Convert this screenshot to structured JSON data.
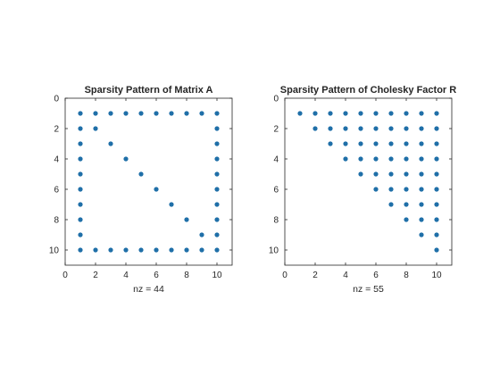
{
  "colors": {
    "marker": "#1f6fa8",
    "axis": "#262626",
    "background": "#ffffff"
  },
  "chart_data": [
    {
      "type": "scatter",
      "subtype": "spy",
      "title": "Sparsity Pattern of Matrix A",
      "xlabel": "nz = 44",
      "ylabel": "",
      "xlim": [
        0,
        11
      ],
      "ylim": [
        0,
        11
      ],
      "y_reversed": true,
      "xticks": [
        "0",
        "2",
        "4",
        "6",
        "8",
        "10"
      ],
      "yticks": [
        "0",
        "2",
        "4",
        "6",
        "8",
        "10"
      ],
      "grid": false,
      "points": [
        [
          1,
          1
        ],
        [
          2,
          1
        ],
        [
          3,
          1
        ],
        [
          4,
          1
        ],
        [
          5,
          1
        ],
        [
          6,
          1
        ],
        [
          7,
          1
        ],
        [
          8,
          1
        ],
        [
          9,
          1
        ],
        [
          10,
          1
        ],
        [
          1,
          2
        ],
        [
          2,
          2
        ],
        [
          10,
          2
        ],
        [
          1,
          3
        ],
        [
          3,
          3
        ],
        [
          10,
          3
        ],
        [
          1,
          4
        ],
        [
          4,
          4
        ],
        [
          10,
          4
        ],
        [
          1,
          5
        ],
        [
          5,
          5
        ],
        [
          10,
          5
        ],
        [
          1,
          6
        ],
        [
          6,
          6
        ],
        [
          10,
          6
        ],
        [
          1,
          7
        ],
        [
          7,
          7
        ],
        [
          10,
          7
        ],
        [
          1,
          8
        ],
        [
          8,
          8
        ],
        [
          10,
          8
        ],
        [
          1,
          9
        ],
        [
          9,
          9
        ],
        [
          10,
          9
        ],
        [
          1,
          10
        ],
        [
          2,
          10
        ],
        [
          3,
          10
        ],
        [
          4,
          10
        ],
        [
          5,
          10
        ],
        [
          6,
          10
        ],
        [
          7,
          10
        ],
        [
          8,
          10
        ],
        [
          9,
          10
        ],
        [
          10,
          10
        ]
      ]
    },
    {
      "type": "scatter",
      "subtype": "spy",
      "title": "Sparsity Pattern of Cholesky Factor R",
      "xlabel": "nz = 55",
      "ylabel": "",
      "xlim": [
        0,
        11
      ],
      "ylim": [
        0,
        11
      ],
      "y_reversed": true,
      "xticks": [
        "0",
        "2",
        "4",
        "6",
        "8",
        "10"
      ],
      "yticks": [
        "0",
        "2",
        "4",
        "6",
        "8",
        "10"
      ],
      "grid": false,
      "pattern": "upper-triangular",
      "n": 10
    }
  ]
}
